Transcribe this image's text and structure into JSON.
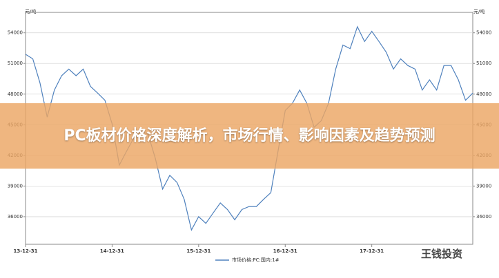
{
  "chart_data": {
    "type": "line",
    "title": "PC板材价格深度解析，市场行情、影响因素及趋势预测",
    "y_unit": "元/吨",
    "x": [
      0,
      1,
      2,
      3,
      4,
      5,
      6,
      7,
      8,
      9,
      10,
      11,
      12,
      13,
      14,
      15,
      16,
      17,
      18,
      19,
      20,
      21,
      22,
      23,
      24,
      25,
      26,
      27,
      28,
      29,
      30,
      31,
      32,
      33,
      34,
      35,
      36,
      37,
      38,
      39,
      40,
      41,
      42,
      43,
      44,
      45,
      46,
      47,
      48,
      49,
      50,
      51,
      52,
      53,
      54,
      55,
      56,
      57,
      58,
      59,
      60,
      61,
      62
    ],
    "series": [
      {
        "name": "市场价格:PC:国内:1#",
        "color": "#4f81bd",
        "values": [
          51900,
          51450,
          49100,
          45750,
          48400,
          49800,
          50450,
          49800,
          50450,
          48750,
          48100,
          47400,
          45100,
          41050,
          42400,
          43700,
          44400,
          44050,
          41700,
          38700,
          40050,
          39350,
          37700,
          34700,
          36000,
          35350,
          36350,
          37350,
          36700,
          35700,
          36700,
          37000,
          37000,
          37700,
          38350,
          42400,
          46400,
          47100,
          48400,
          47100,
          44750,
          45400,
          47100,
          50450,
          52800,
          52450,
          54600,
          53150,
          54150,
          53150,
          52100,
          50450,
          51450,
          50800,
          50450,
          48400,
          49400,
          48400,
          50800,
          50800,
          49400,
          47400,
          48100
        ]
      }
    ],
    "xlim": [
      0,
      62
    ],
    "xticks": [
      {
        "value": 0,
        "label": "13-12-31"
      },
      {
        "value": 12,
        "label": "14-12-31"
      },
      {
        "value": 24,
        "label": "15-12-31"
      },
      {
        "value": 36,
        "label": "16-12-31"
      },
      {
        "value": 48,
        "label": "17-12-31"
      }
    ],
    "ylim": [
      33300,
      56000
    ],
    "yticks": [
      36000,
      39000,
      42000,
      45000,
      48000,
      51000,
      54000
    ],
    "y2lim": [
      33300,
      56000
    ],
    "y2ticks": [
      36000,
      39000,
      42000,
      45000,
      48000,
      51000,
      54000
    ],
    "watermark": "王钱投资"
  }
}
